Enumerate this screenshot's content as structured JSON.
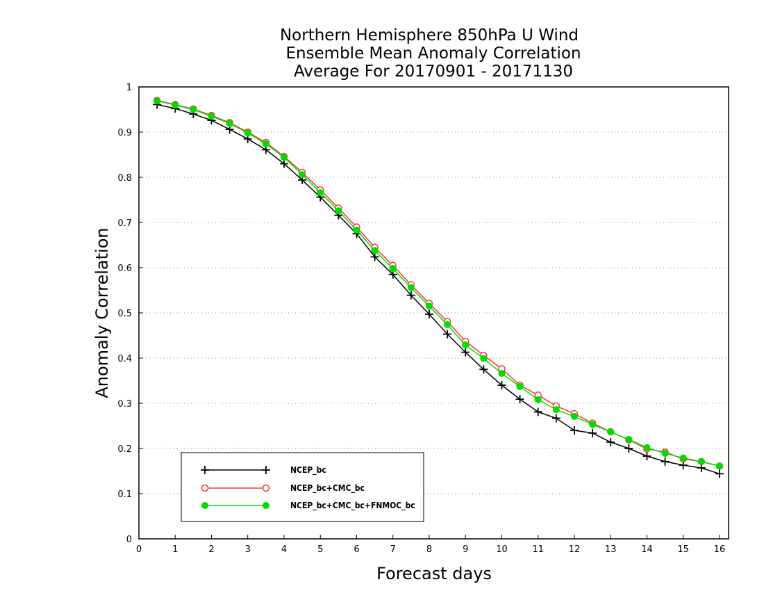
{
  "chart_data": {
    "type": "line",
    "title": [
      "Northern Hemisphere 850hPa U Wind",
      "Ensemble Mean Anomaly Correlation",
      "Average For 20170901 - 20171130"
    ],
    "xlabel": "Forecast days",
    "ylabel": "Anomaly Correlation",
    "xlim": [
      0,
      16.25
    ],
    "ylim": [
      0,
      1
    ],
    "xticks": [
      0,
      1,
      2,
      3,
      4,
      5,
      6,
      7,
      8,
      9,
      10,
      11,
      12,
      13,
      14,
      15,
      16
    ],
    "yticks": [
      0,
      0.1,
      0.2,
      0.3,
      0.4,
      0.5,
      0.6,
      0.7,
      0.8,
      0.9,
      1
    ],
    "ytick_labels": [
      "0",
      "0.1",
      "0.2",
      "0.3",
      "0.4",
      "0.5",
      "0.6",
      "0.7",
      "0.8",
      "0.9",
      "1"
    ],
    "grid": "horizontal dotted",
    "legend_position": "bottom-left",
    "x": [
      0.5,
      1,
      1.5,
      2,
      2.5,
      3,
      3.5,
      4,
      4.5,
      5,
      5.5,
      6,
      6.5,
      7,
      7.5,
      8,
      8.5,
      9,
      9.5,
      10,
      10.5,
      11,
      11.5,
      12,
      12.5,
      13,
      13.5,
      14,
      14.5,
      15,
      15.5,
      16
    ],
    "series": [
      {
        "name": "NCEP_bc",
        "color": "#000000",
        "marker": "plus",
        "values": [
          0.961,
          0.952,
          0.94,
          0.926,
          0.906,
          0.885,
          0.861,
          0.83,
          0.794,
          0.756,
          0.716,
          0.675,
          0.624,
          0.585,
          0.539,
          0.497,
          0.453,
          0.413,
          0.375,
          0.34,
          0.309,
          0.281,
          0.267,
          0.24,
          0.234,
          0.214,
          0.2,
          0.183,
          0.171,
          0.163,
          0.157,
          0.144
        ]
      },
      {
        "name": "NCEP_bc+CMC_bc",
        "color": "#ff3333",
        "marker": "open-circle",
        "values": [
          0.97,
          0.961,
          0.951,
          0.937,
          0.921,
          0.9,
          0.877,
          0.846,
          0.811,
          0.772,
          0.732,
          0.69,
          0.645,
          0.605,
          0.562,
          0.521,
          0.481,
          0.437,
          0.406,
          0.376,
          0.34,
          0.318,
          0.294,
          0.277,
          0.256,
          0.237,
          0.219,
          0.199,
          0.192,
          0.177,
          0.171,
          0.161
        ]
      },
      {
        "name": "NCEP_bc+CMC_bc+FNMOC_bc",
        "color": "#00dd00",
        "marker": "filled-circle",
        "values": [
          0.969,
          0.96,
          0.95,
          0.935,
          0.919,
          0.898,
          0.874,
          0.844,
          0.806,
          0.766,
          0.726,
          0.683,
          0.638,
          0.598,
          0.556,
          0.515,
          0.474,
          0.429,
          0.399,
          0.366,
          0.337,
          0.308,
          0.286,
          0.271,
          0.253,
          0.237,
          0.22,
          0.202,
          0.189,
          0.179,
          0.171,
          0.161
        ]
      }
    ]
  }
}
